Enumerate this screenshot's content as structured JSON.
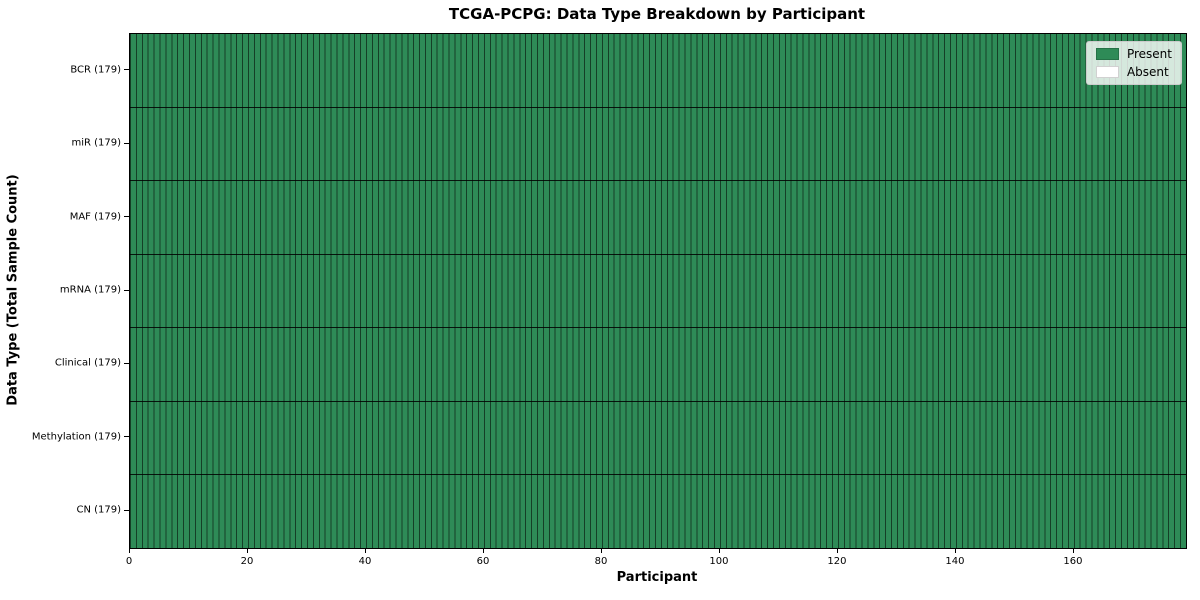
{
  "chart_data": {
    "type": "heatmap",
    "title": "TCGA-PCPG: Data Type Breakdown by Participant",
    "xlabel": "Participant",
    "ylabel": "Data Type (Total Sample Count)",
    "n_participants": 179,
    "xlim": [
      0,
      179
    ],
    "x_ticks": [
      0,
      20,
      40,
      60,
      80,
      100,
      120,
      140,
      160
    ],
    "rows": [
      {
        "tick_label": "BCR (179)",
        "name": "BCR",
        "total_samples": 179,
        "present_count": 179,
        "absent_count": 0
      },
      {
        "tick_label": "miR (179)",
        "name": "miR",
        "total_samples": 179,
        "present_count": 179,
        "absent_count": 0
      },
      {
        "tick_label": "MAF (179)",
        "name": "MAF",
        "total_samples": 179,
        "present_count": 179,
        "absent_count": 0
      },
      {
        "tick_label": "mRNA (179)",
        "name": "mRNA",
        "total_samples": 179,
        "present_count": 179,
        "absent_count": 0
      },
      {
        "tick_label": "Clinical (179)",
        "name": "Clinical",
        "total_samples": 179,
        "present_count": 179,
        "absent_count": 0
      },
      {
        "tick_label": "Methylation (179)",
        "name": "Methylation",
        "total_samples": 179,
        "present_count": 179,
        "absent_count": 0
      },
      {
        "tick_label": "CN (179)",
        "name": "CN",
        "total_samples": 179,
        "present_count": 179,
        "absent_count": 0
      }
    ],
    "legend": [
      {
        "label": "Present",
        "color": "#2e8b57"
      },
      {
        "label": "Absent",
        "color": "#ffffff"
      }
    ],
    "colors": {
      "present": "#2e8b57",
      "absent": "#ffffff",
      "cell_edge": "rgba(0,0,0,0.55)",
      "row_separator": "rgba(0,0,0,0.85)"
    },
    "layout": {
      "legend_position": "upper right",
      "grid": "cell-edges"
    }
  }
}
